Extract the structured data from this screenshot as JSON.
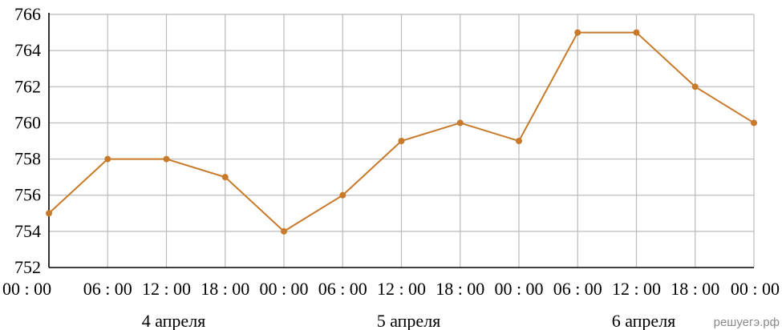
{
  "chart_data": {
    "type": "line",
    "x_labels": [
      "00 : 00",
      "06 : 00",
      "12 : 00",
      "18 : 00",
      "00 : 00",
      "06 : 00",
      "12 : 00",
      "18 : 00",
      "00 : 00",
      "06 : 00",
      "12 : 00",
      "18 : 00",
      "00 : 00"
    ],
    "day_labels": [
      "4 апреля",
      "5 апреля",
      "6 апреля"
    ],
    "y_ticks": [
      752,
      754,
      756,
      758,
      760,
      762,
      764,
      766
    ],
    "ylim": [
      752,
      766
    ],
    "series": [
      {
        "values": [
          755,
          758,
          758,
          757,
          754,
          756,
          759,
          760,
          759,
          765,
          765,
          762,
          760
        ]
      }
    ],
    "grid": true,
    "line_color": "#C87A2A",
    "grid_color": "#BBBBBB"
  },
  "watermark": "решуегэ.рф"
}
